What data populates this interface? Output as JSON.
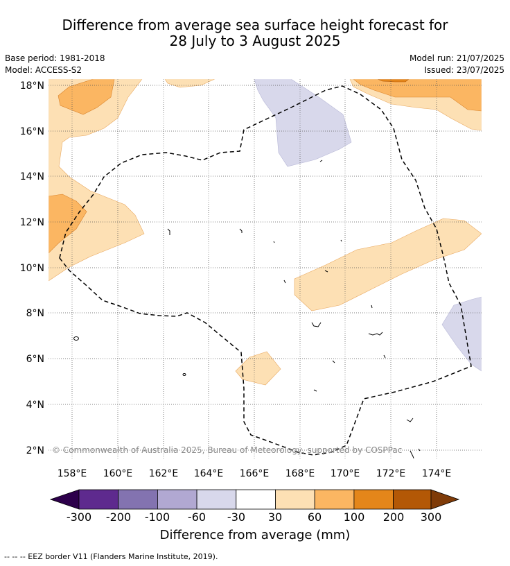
{
  "header": {
    "title_line1": "Difference from average sea surface height forecast for",
    "title_line2": "28 July to 3 August 2025",
    "base_period": "Base period: 1981-2018",
    "model": "Model: ACCESS-S2",
    "model_run": "Model run: 21/07/2025",
    "issued": "Issued: 23/07/2025"
  },
  "map": {
    "lat_labels": [
      "18°N",
      "16°N",
      "14°N",
      "12°N",
      "10°N",
      "8°N",
      "6°N",
      "4°N",
      "2°N"
    ],
    "lon_labels": [
      "158°E",
      "160°E",
      "162°E",
      "164°E",
      "166°E",
      "168°E",
      "170°E",
      "172°E",
      "174°E"
    ],
    "copyright": "© Commonwealth of Australia 2025, Bureau of Meteorology, supported by COSPPac"
  },
  "colorbar": {
    "title": "Difference from average (mm)",
    "ticks": [
      "-300",
      "-200",
      "-100",
      "-60",
      "-30",
      "30",
      "60",
      "100",
      "200",
      "300"
    ],
    "colors": {
      "under": "#2d004b",
      "c1": "#5e2a8e",
      "c2": "#8373b0",
      "c3": "#b1a8d2",
      "c4": "#d8d8eb",
      "c5": "#ffffff",
      "c6": "#fde0b4",
      "c7": "#fbb662",
      "c8": "#e4861a",
      "c9": "#b35806",
      "over": "#7f3b08"
    }
  },
  "footnote": "--  --  -- EEZ border V11 (Flanders Marine Institute, 2019)."
}
